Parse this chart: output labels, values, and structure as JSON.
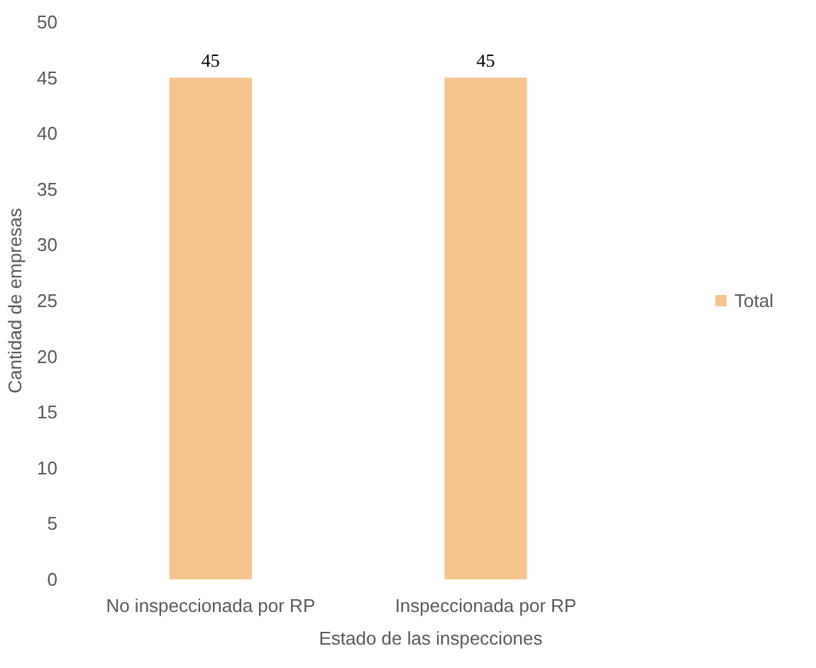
{
  "chart_data": {
    "type": "bar",
    "xlabel": "Estado de las inspecciones",
    "ylabel": "Cantidad de empresas",
    "categories": [
      "No inspeccionada por RP",
      "Inspeccionada por RP"
    ],
    "series": [
      {
        "name": "Total",
        "color": "#f5c48e",
        "values": [
          45,
          45
        ]
      }
    ],
    "ylim": [
      0,
      50
    ],
    "yticks": [
      0,
      5,
      10,
      15,
      20,
      25,
      30,
      35,
      40,
      45,
      50
    ],
    "grid": false,
    "legend": "right",
    "data_labels": true
  }
}
